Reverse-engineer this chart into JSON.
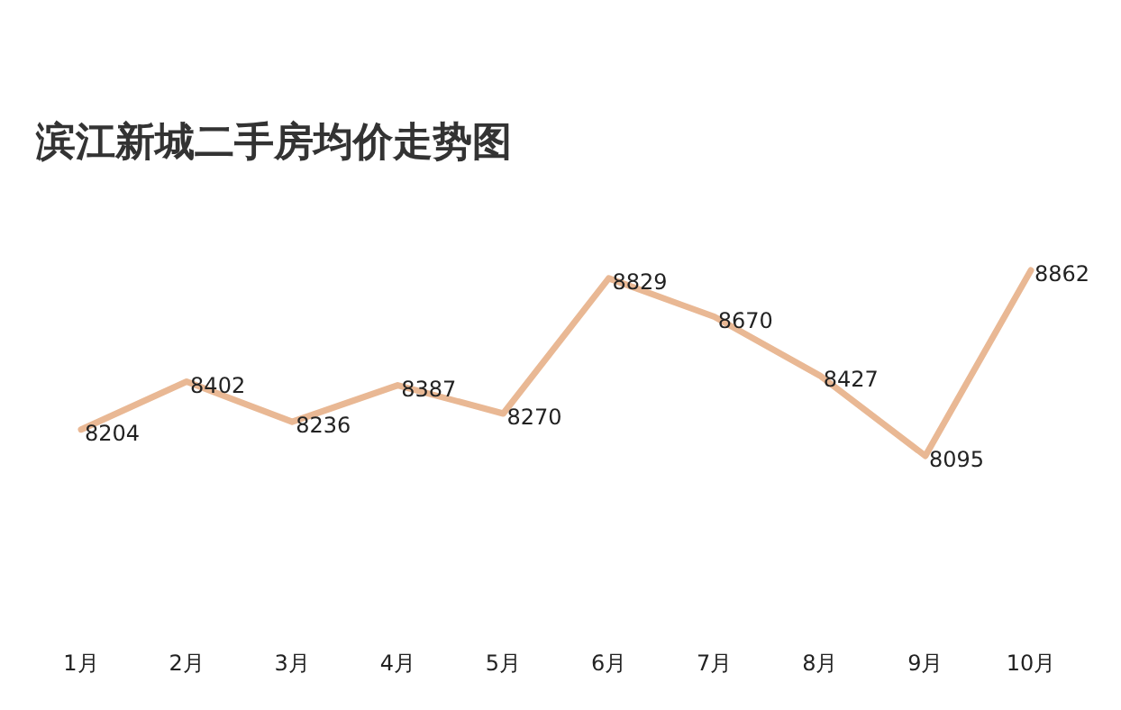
{
  "chart_data": {
    "type": "line",
    "title": "滨江新城二手房均价走势图",
    "categories": [
      "1月",
      "2月",
      "3月",
      "4月",
      "5月",
      "6月",
      "7月",
      "8月",
      "9月",
      "10月"
    ],
    "series": [
      {
        "color": "#e9b894",
        "values": [
          8204,
          8402,
          8236,
          8387,
          8270,
          8829,
          8670,
          8427,
          8095,
          8862
        ]
      }
    ],
    "data_labels": true,
    "marker": "none",
    "line_style": "solid"
  }
}
